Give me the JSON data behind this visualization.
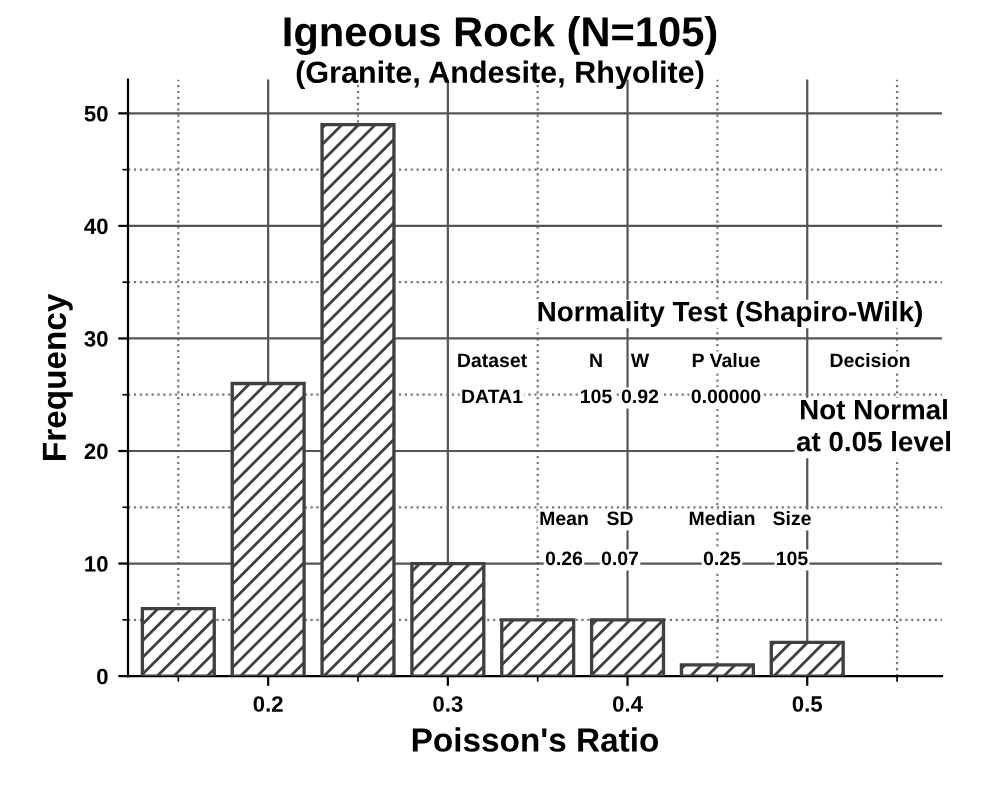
{
  "chart_data": {
    "type": "bar",
    "title": "Igneous Rock (N=105)",
    "subtitle": "(Granite, Andesite, Rhyolite)",
    "xlabel": "Poisson's Ratio",
    "ylabel": "Frequency",
    "x": [
      0.15,
      0.2,
      0.25,
      0.3,
      0.35,
      0.4,
      0.45,
      0.5
    ],
    "values": [
      6,
      26,
      49,
      10,
      5,
      5,
      1,
      3
    ],
    "color": "#404040",
    "xlim": [
      0.122,
      0.575
    ],
    "xticks": [
      0.2,
      0.3,
      0.4,
      0.5
    ],
    "ylim": [
      0,
      53
    ],
    "yticks": [
      0,
      10,
      20,
      30,
      40,
      50
    ],
    "grid": true,
    "annotations": [
      "Normality Test (Shapiro-Wilk)",
      "Dataset",
      "N",
      "W",
      "P Value",
      "Decision",
      "DATA1",
      "105",
      "0.92",
      "0.00000",
      "Not Normal\nat 0.05 level",
      "Mean",
      "SD",
      "Median",
      "Size",
      "0.26",
      "0.07",
      "0.25",
      "105"
    ]
  }
}
